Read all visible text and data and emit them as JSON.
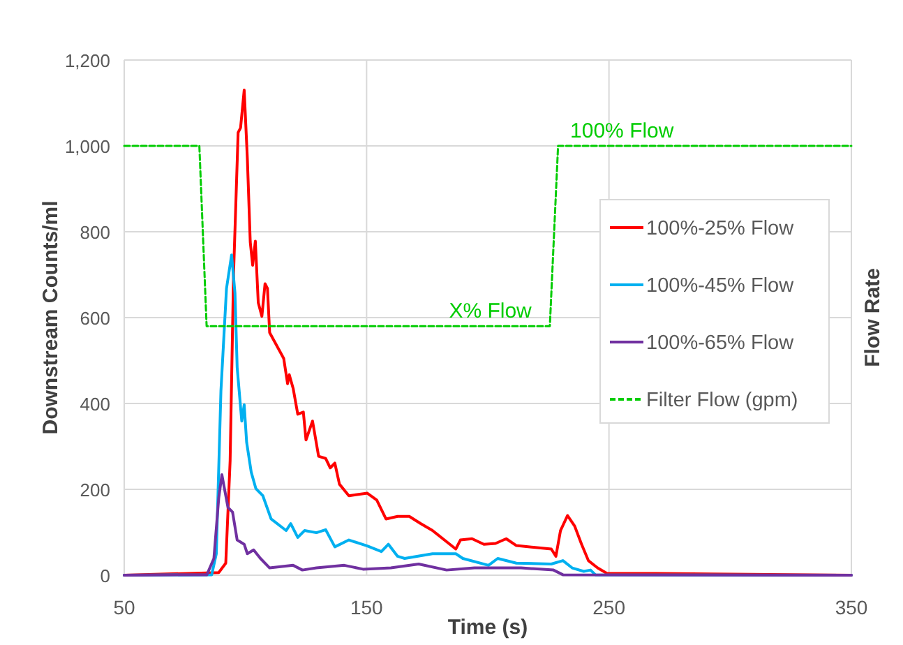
{
  "chart_data": {
    "type": "line",
    "xlabel": "Time (s)",
    "ylabel": "Downstream Counts/ml",
    "y2label": "Flow Rate",
    "xlim": [
      50,
      350
    ],
    "xticks": [
      50,
      150,
      250,
      350
    ],
    "ylim": [
      0,
      1200
    ],
    "yticks": [
      0,
      {
        "value": 200,
        "label": "200"
      },
      {
        "value": 400,
        "label": "400"
      },
      {
        "value": 600,
        "label": "600"
      },
      {
        "value": 800,
        "label": "800"
      },
      {
        "value": 1000,
        "label": "1,000"
      },
      {
        "value": 1200,
        "label": "1,200"
      }
    ],
    "grid": true,
    "legend": "right",
    "series": [
      {
        "name": "100%-25% Flow",
        "color": "#ff0000",
        "line_style": "solid",
        "x": [
          50,
          89,
          91.9,
          93.7,
          95.1,
          97,
          98,
          99.5,
          100.8,
          102,
          103,
          104.1,
          105.3,
          106.8,
          108.1,
          109.1,
          110,
          115.8,
          117.4,
          118.1,
          119.7,
          121.6,
          123.9,
          125,
          127.7,
          130.2,
          133.1,
          135,
          136.9,
          138.8,
          142.7,
          150.3,
          154.2,
          158,
          162.8,
          167.6,
          172.4,
          177.2,
          186.8,
          188.7,
          193.5,
          198.4,
          203.2,
          207.6,
          211.8,
          226.2,
          228.1,
          230,
          232.9,
          235.8,
          238.7,
          241.5,
          245.3,
          249.2,
          269.3,
          350
        ],
        "values": [
          0,
          6,
          28,
          267,
          700,
          1031,
          1042,
          1130,
          971,
          776,
          722,
          778,
          635,
          603,
          679,
          668,
          565,
          505,
          446,
          467,
          435,
          375,
          380,
          315,
          359,
          277,
          272,
          250,
          261,
          212,
          185,
          191,
          175,
          131,
          137,
          137,
          120,
          104,
          61,
          82,
          85,
          72,
          74,
          85,
          69,
          61,
          44,
          104,
          139,
          115,
          72,
          34,
          17,
          4,
          4,
          0
        ]
      },
      {
        "name": "100%-45% Flow",
        "color": "#00b0f0",
        "line_style": "solid",
        "x": [
          50,
          86.1,
          88,
          89.9,
          92.2,
          94.3,
          95.7,
          96.6,
          98.5,
          99.5,
          100.5,
          102.4,
          104.3,
          107.2,
          110.6,
          116.8,
          118.7,
          121.6,
          124.4,
          129.3,
          133.1,
          136.9,
          142.7,
          150.3,
          156.1,
          159,
          162.8,
          165.7,
          177.2,
          186.8,
          189.7,
          200.3,
          204.1,
          211.8,
          226.2,
          231,
          234.8,
          239.6,
          242.4,
          244.4,
          350
        ],
        "values": [
          0,
          1,
          50,
          429,
          668,
          746,
          657,
          484,
          359,
          397,
          310,
          240,
          202,
          185,
          131,
          104,
          120,
          88,
          104,
          99,
          106,
          66,
          82,
          68,
          55,
          72,
          44,
          39,
          50,
          50,
          39,
          23,
          39,
          28,
          26,
          34,
          17,
          9,
          12,
          1,
          0
        ]
      },
      {
        "name": "100%-65% Flow",
        "color": "#7030a0",
        "line_style": "solid",
        "x": [
          50,
          84.1,
          87,
          89,
          90.3,
          91.9,
          92.8,
          94.7,
          96.6,
          99.5,
          100.8,
          103.4,
          106.2,
          110,
          119.7,
          123.5,
          129.3,
          140.8,
          148.5,
          160,
          171.5,
          183,
          194.5,
          213.7,
          227.1,
          231,
          350
        ],
        "values": [
          0,
          1,
          39,
          180,
          234,
          185,
          158,
          147,
          82,
          72,
          50,
          59,
          39,
          17,
          23,
          12,
          17,
          23,
          14,
          17,
          26,
          12,
          17,
          17,
          12,
          1,
          0
        ]
      },
      {
        "name": "Filter Flow (gpm)",
        "color": "#00cc00",
        "line_style": "dashed",
        "x": [
          50,
          81,
          84,
          225.6,
          229,
          350
        ],
        "values": [
          1000,
          1000,
          580,
          580,
          1000,
          1000
        ]
      }
    ],
    "annotations": [
      {
        "text": "100% Flow",
        "x": 234,
        "y": 1000
      },
      {
        "text": "X% Flow",
        "x": 184,
        "y": 580
      }
    ]
  }
}
